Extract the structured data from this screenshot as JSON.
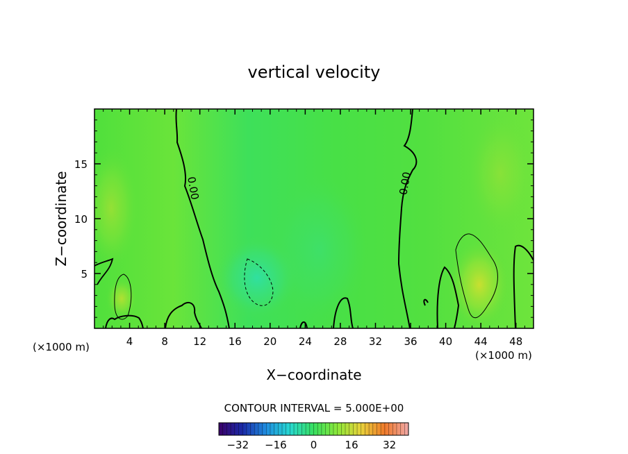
{
  "chart_data": {
    "type": "heatmap",
    "title": "vertical velocity",
    "xlabel": "X−coordinate",
    "ylabel": "Z−coordinate",
    "x_unit_left": "(×1000 m)",
    "x_unit_right": "(×1000 m)",
    "xlim": [
      0,
      50
    ],
    "ylim": [
      0,
      20
    ],
    "x_ticks": [
      4,
      8,
      12,
      16,
      20,
      24,
      28,
      32,
      36,
      40,
      44,
      48
    ],
    "y_ticks": [
      5,
      10,
      15
    ],
    "contour_interval_text": "CONTOUR INTERVAL = 5.000E+00",
    "contour_label": "0.00",
    "colorbar": {
      "range": [
        -40,
        40
      ],
      "ticks": [
        -32,
        -16,
        0,
        16,
        32
      ],
      "stops": [
        "#3a0068",
        "#1a2aa8",
        "#1f8ee0",
        "#27d8d0",
        "#38e060",
        "#8ce83a",
        "#e8d23a",
        "#f07a2a",
        "#f0a8a8"
      ]
    },
    "features": [
      {
        "kind": "zero-contour",
        "x": [
          9.5,
          14.0
        ],
        "z": [
          0,
          19.8
        ]
      },
      {
        "kind": "zero-contour",
        "x": [
          35.5,
          37.0
        ],
        "z": [
          0,
          19.8
        ]
      },
      {
        "kind": "positive-contour",
        "center": [
          3.2,
          3.0
        ],
        "value": 5
      },
      {
        "kind": "negative-contour",
        "center": [
          18.5,
          4.2
        ],
        "value": -5
      },
      {
        "kind": "positive-contour",
        "center": [
          43.5,
          4.5
        ],
        "value": 5
      }
    ]
  }
}
